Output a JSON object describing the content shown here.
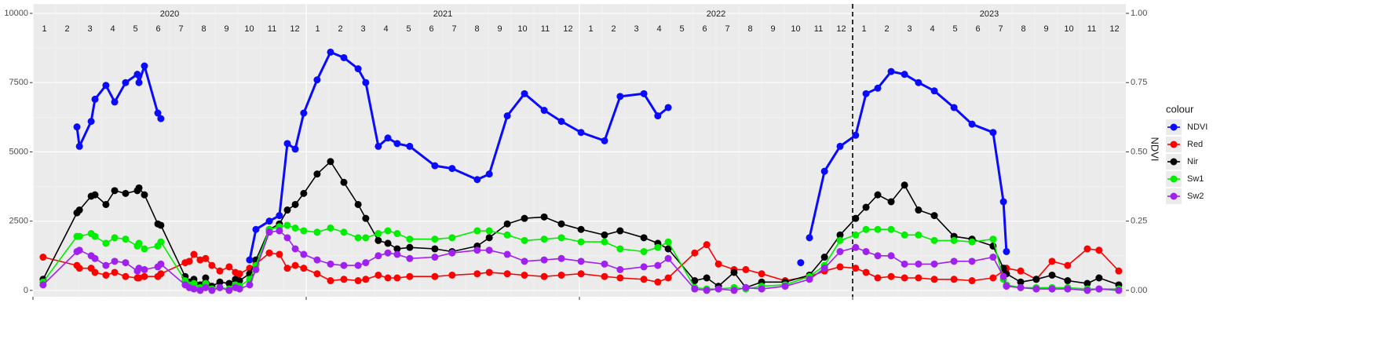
{
  "chart_data": {
    "type": "line",
    "years": [
      2020,
      2021,
      2022,
      2023
    ],
    "months": [
      1,
      2,
      3,
      4,
      5,
      6,
      7,
      8,
      9,
      10,
      11,
      12
    ],
    "xlim": [
      2020,
      2024
    ],
    "xticks": [
      2020,
      2021,
      2022,
      2023
    ],
    "ylim": [
      -230,
      10340
    ],
    "yticks": [
      0,
      2500,
      5000,
      7500,
      10000
    ],
    "y2lim": [
      -0.023,
      1.034
    ],
    "y2ticks": [
      {
        "value": 0,
        "label": "0.00"
      },
      {
        "value": 0.25,
        "label": "0.25"
      },
      {
        "value": 0.5,
        "label": "0.50"
      },
      {
        "value": 0.75,
        "label": "0.75"
      },
      {
        "value": 1,
        "label": "1.00"
      }
    ],
    "y2label": "NDVI",
    "legend_title": "colour",
    "legend_position": "right",
    "grid": true,
    "vline": 2023,
    "x": [
      2020.037,
      2020.161,
      2020.17,
      2020.213,
      2020.227,
      2020.267,
      2020.299,
      2020.339,
      2020.382,
      2020.388,
      2020.408,
      2020.457,
      2020.468,
      2020.557,
      2020.572,
      2020.589,
      2020.612,
      2020.632,
      2020.655,
      2020.684,
      2020.718,
      2020.741,
      2020.756,
      2020.793,
      2020.816,
      2020.865,
      2020.902,
      2020.931,
      2020.96,
      2020.991,
      2021.04,
      2021.089,
      2021.138,
      2021.19,
      2021.218,
      2021.264,
      2021.299,
      2021.333,
      2021.379,
      2021.471,
      2021.534,
      2021.626,
      2021.67,
      2021.736,
      2021.799,
      2021.871,
      2021.934,
      2022.006,
      2022.092,
      2022.149,
      2022.236,
      2022.287,
      2022.325,
      2022.422,
      2022.466,
      2022.509,
      2022.566,
      2022.609,
      2022.667,
      2022.753,
      2022.842,
      2022.897,
      2022.954,
      2023.011,
      2023.049,
      2023.092,
      2023.141,
      2023.19,
      2023.241,
      2023.299,
      2023.371,
      2023.437,
      2023.514,
      2023.552,
      2023.563,
      2023.615,
      2023.672,
      2023.73,
      2023.787,
      2023.859,
      2023.902,
      2023.974
    ],
    "series": [
      {
        "name": "NDVI",
        "color": "#0a0aff",
        "axis": "y2",
        "x": [
          2020.161,
          2020.17,
          2020.213,
          2020.227,
          2020.267,
          2020.299,
          2020.339,
          2020.382,
          2020.388,
          2020.408,
          2020.457,
          2020.468,
          2020.6,
          2020.793,
          2020.816,
          2020.865,
          2020.902,
          2020.931,
          2020.96,
          2020.991,
          2021.04,
          2021.089,
          2021.138,
          2021.19,
          2021.218,
          2021.264,
          2021.299,
          2021.333,
          2021.379,
          2021.471,
          2021.534,
          2021.626,
          2021.67,
          2021.736,
          2021.799,
          2021.871,
          2021.934,
          2022.006,
          2022.092,
          2022.149,
          2022.236,
          2022.287,
          2022.325,
          2022.5,
          2022.81,
          2022.826,
          2022.842,
          2022.897,
          2022.954,
          2023.011,
          2023.049,
          2023.092,
          2023.141,
          2023.19,
          2023.241,
          2023.299,
          2023.371,
          2023.437,
          2023.514,
          2023.552,
          2023.563
        ],
        "values": [
          0.59,
          0.52,
          0.61,
          0.69,
          0.74,
          0.68,
          0.75,
          0.78,
          0.75,
          0.81,
          0.64,
          0.62,
          null,
          0.11,
          0.22,
          0.25,
          0.27,
          0.53,
          0.51,
          0.64,
          0.76,
          0.86,
          0.84,
          0.8,
          0.75,
          0.52,
          0.55,
          0.53,
          0.52,
          0.45,
          0.44,
          0.4,
          0.42,
          0.63,
          0.71,
          0.65,
          0.61,
          0.57,
          0.54,
          0.7,
          0.71,
          0.63,
          0.66,
          null,
          0.1,
          null,
          0.19,
          0.43,
          0.52,
          0.56,
          0.71,
          0.73,
          0.79,
          0.78,
          0.75,
          0.72,
          0.66,
          0.6,
          0.57,
          0.32,
          0.14
        ]
      },
      {
        "name": "Red",
        "color": "#ff0000",
        "values": [
          1200,
          900,
          800,
          800,
          650,
          550,
          650,
          500,
          450,
          450,
          500,
          500,
          600,
          1000,
          1050,
          1300,
          1100,
          1150,
          900,
          700,
          850,
          650,
          600,
          800,
          950,
          1350,
          1300,
          800,
          900,
          800,
          600,
          350,
          400,
          350,
          400,
          550,
          450,
          450,
          500,
          500,
          550,
          600,
          650,
          600,
          550,
          500,
          550,
          600,
          500,
          450,
          400,
          300,
          450,
          1350,
          1650,
          950,
          750,
          750,
          600,
          350,
          500,
          700,
          850,
          800,
          650,
          450,
          500,
          450,
          450,
          400,
          400,
          350,
          450,
          700,
          800,
          700,
          400,
          1050,
          900,
          1500,
          1450,
          700
        ]
      },
      {
        "name": "Nir",
        "color": "#000000",
        "values": [
          400,
          2800,
          2900,
          3400,
          3450,
          3100,
          3600,
          3500,
          3600,
          3700,
          3450,
          2400,
          2350,
          500,
          300,
          400,
          200,
          450,
          150,
          300,
          250,
          400,
          350,
          600,
          1100,
          2200,
          2400,
          2900,
          3100,
          3500,
          4200,
          4650,
          3900,
          3100,
          2600,
          1800,
          1700,
          1500,
          1550,
          1500,
          1400,
          1600,
          1900,
          2400,
          2600,
          2650,
          2400,
          2200,
          2000,
          2150,
          1900,
          1700,
          1500,
          350,
          450,
          150,
          650,
          100,
          300,
          300,
          550,
          1200,
          2000,
          2600,
          3000,
          3450,
          3200,
          3800,
          2900,
          2700,
          1950,
          1850,
          1600,
          800,
          600,
          300,
          400,
          550,
          350,
          250,
          450,
          200
        ]
      },
      {
        "name": "Sw1",
        "color": "#00ee00",
        "values": [
          300,
          1950,
          1950,
          2050,
          1950,
          1700,
          1900,
          1850,
          1600,
          1700,
          1500,
          1600,
          1750,
          350,
          200,
          250,
          100,
          250,
          50,
          100,
          50,
          200,
          150,
          400,
          900,
          2200,
          2300,
          2350,
          2250,
          2150,
          2100,
          2250,
          2100,
          1900,
          1900,
          2050,
          2150,
          2050,
          1850,
          1850,
          1900,
          2150,
          2150,
          2000,
          1800,
          1850,
          1900,
          1750,
          1750,
          1500,
          1400,
          1550,
          1750,
          100,
          50,
          50,
          100,
          50,
          150,
          200,
          500,
          900,
          1800,
          2000,
          2200,
          2200,
          2200,
          2000,
          2000,
          1800,
          1800,
          1750,
          1850,
          400,
          200,
          100,
          100,
          100,
          100,
          50,
          50,
          50
        ]
      },
      {
        "name": "Sw2",
        "color": "#a020f0",
        "values": [
          200,
          1400,
          1450,
          1250,
          1150,
          900,
          1050,
          1000,
          700,
          800,
          750,
          850,
          950,
          200,
          100,
          50,
          0,
          100,
          0,
          100,
          0,
          100,
          50,
          200,
          750,
          2100,
          2150,
          1900,
          1500,
          1300,
          1100,
          950,
          900,
          900,
          1000,
          1250,
          1350,
          1300,
          1150,
          1200,
          1350,
          1450,
          1450,
          1300,
          1050,
          1100,
          1150,
          1050,
          950,
          750,
          850,
          900,
          1150,
          50,
          0,
          50,
          0,
          100,
          50,
          150,
          400,
          800,
          1400,
          1550,
          1400,
          1250,
          1250,
          950,
          950,
          950,
          1050,
          1050,
          1200,
          500,
          150,
          100,
          50,
          50,
          50,
          0,
          50,
          0
        ]
      }
    ]
  }
}
